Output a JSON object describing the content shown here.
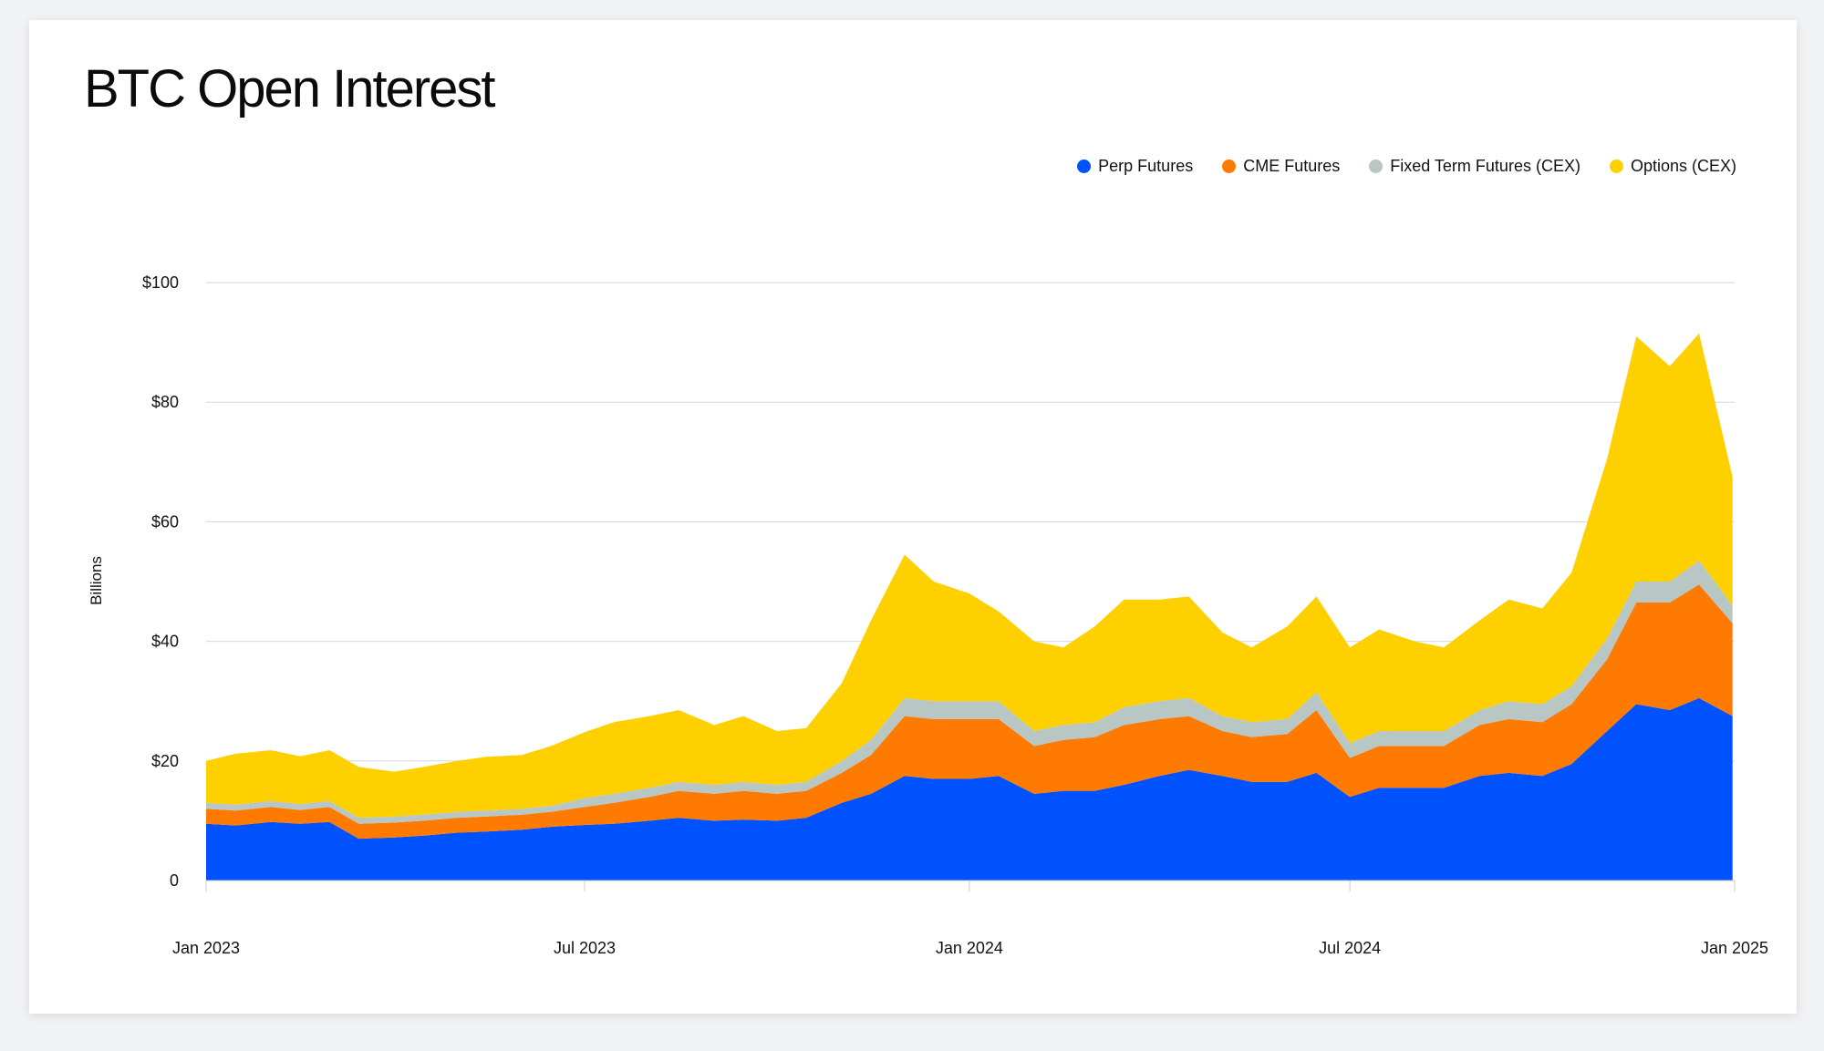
{
  "title": "BTC Open Interest",
  "chart_data": {
    "type": "area",
    "stacked": true,
    "title": "BTC Open Interest",
    "xlabel": "",
    "ylabel": "Billions",
    "ylim": [
      0,
      100
    ],
    "y_ticks": [
      {
        "value": 0,
        "label": "0"
      },
      {
        "value": 20,
        "label": "$20"
      },
      {
        "value": 40,
        "label": "$40"
      },
      {
        "value": 60,
        "label": "$60"
      },
      {
        "value": 80,
        "label": "$80"
      },
      {
        "value": 100,
        "label": "$100"
      }
    ],
    "x_ticks": [
      {
        "x": "2023-01-01",
        "label": "Jan 2023"
      },
      {
        "x": "2023-07-01",
        "label": "Jul 2023"
      },
      {
        "x": "2024-01-01",
        "label": "Jan 2024"
      },
      {
        "x": "2024-07-01",
        "label": "Jul 2024"
      },
      {
        "x": "2025-01-01",
        "label": "Jan 2025"
      }
    ],
    "grid": true,
    "legend_position": "top-right",
    "x": [
      "2023-01-01",
      "2023-01-15",
      "2023-02-01",
      "2023-02-15",
      "2023-03-01",
      "2023-03-15",
      "2023-04-01",
      "2023-04-15",
      "2023-05-01",
      "2023-05-15",
      "2023-06-01",
      "2023-06-15",
      "2023-07-01",
      "2023-07-15",
      "2023-08-01",
      "2023-08-15",
      "2023-09-01",
      "2023-09-15",
      "2023-10-01",
      "2023-10-15",
      "2023-11-01",
      "2023-11-15",
      "2023-12-01",
      "2023-12-15",
      "2024-01-01",
      "2024-01-15",
      "2024-02-01",
      "2024-02-15",
      "2024-03-01",
      "2024-03-15",
      "2024-04-01",
      "2024-04-15",
      "2024-05-01",
      "2024-05-15",
      "2024-06-01",
      "2024-06-15",
      "2024-07-01",
      "2024-07-15",
      "2024-08-01",
      "2024-08-15",
      "2024-09-01",
      "2024-09-15",
      "2024-10-01",
      "2024-10-15",
      "2024-11-01",
      "2024-11-15",
      "2024-12-01",
      "2024-12-15",
      "2024-12-31"
    ],
    "series": [
      {
        "name": "Perp Futures",
        "color": "#0052ff",
        "values": [
          9.5,
          9.2,
          9.8,
          9.5,
          9.8,
          7.0,
          7.2,
          7.5,
          8.0,
          8.2,
          8.5,
          9.0,
          9.3,
          9.5,
          10.0,
          10.5,
          10.0,
          10.2,
          10.0,
          10.5,
          13.0,
          14.5,
          17.5,
          17.0,
          17.0,
          17.5,
          14.5,
          15.0,
          15.0,
          16.0,
          17.5,
          18.5,
          17.5,
          16.5,
          16.5,
          18.0,
          14.0,
          15.5,
          15.5,
          15.5,
          17.5,
          18.0,
          17.5,
          19.5,
          25.0,
          29.5,
          28.5,
          30.5,
          27.5
        ]
      },
      {
        "name": "CME Futures",
        "color": "#ff7a00",
        "values": [
          2.5,
          2.5,
          2.5,
          2.3,
          2.5,
          2.5,
          2.5,
          2.5,
          2.5,
          2.5,
          2.5,
          2.5,
          3.0,
          3.5,
          4.0,
          4.5,
          4.5,
          4.8,
          4.5,
          4.5,
          5.0,
          6.5,
          10.0,
          10.0,
          10.0,
          9.5,
          8.0,
          8.5,
          9.0,
          10.0,
          9.5,
          9.0,
          7.5,
          7.5,
          8.0,
          10.5,
          6.5,
          7.0,
          7.0,
          7.0,
          8.5,
          9.0,
          9.0,
          10.0,
          12.0,
          17.0,
          18.0,
          19.0,
          15.5
        ]
      },
      {
        "name": "Fixed Term Futures (CEX)",
        "color": "#b8c6c4",
        "values": [
          1.0,
          1.0,
          1.0,
          1.0,
          1.0,
          1.0,
          1.0,
          1.0,
          1.0,
          1.0,
          1.0,
          1.0,
          1.5,
          1.5,
          1.5,
          1.5,
          1.5,
          1.5,
          1.5,
          1.5,
          2.0,
          2.5,
          3.0,
          3.0,
          3.0,
          3.0,
          2.5,
          2.5,
          2.5,
          3.0,
          3.0,
          3.0,
          2.5,
          2.5,
          2.5,
          3.0,
          2.5,
          2.5,
          2.5,
          2.5,
          2.5,
          3.0,
          3.0,
          3.0,
          3.5,
          3.5,
          3.5,
          4.0,
          3.0
        ]
      },
      {
        "name": "Options (CEX)",
        "color": "#ffd000",
        "values": [
          7.0,
          8.5,
          8.5,
          8.0,
          8.5,
          8.5,
          7.5,
          8.0,
          8.5,
          9.0,
          9.0,
          10.0,
          11.0,
          12.0,
          12.0,
          12.0,
          10.0,
          11.0,
          9.0,
          9.0,
          13.0,
          20.0,
          24.0,
          20.0,
          18.0,
          15.0,
          15.0,
          13.0,
          16.0,
          18.0,
          17.0,
          17.0,
          14.0,
          12.5,
          15.5,
          16.0,
          16.0,
          17.0,
          15.0,
          14.0,
          15.0,
          17.0,
          16.0,
          19.0,
          30.0,
          41.0,
          36.0,
          38.0,
          21.5
        ]
      }
    ]
  }
}
